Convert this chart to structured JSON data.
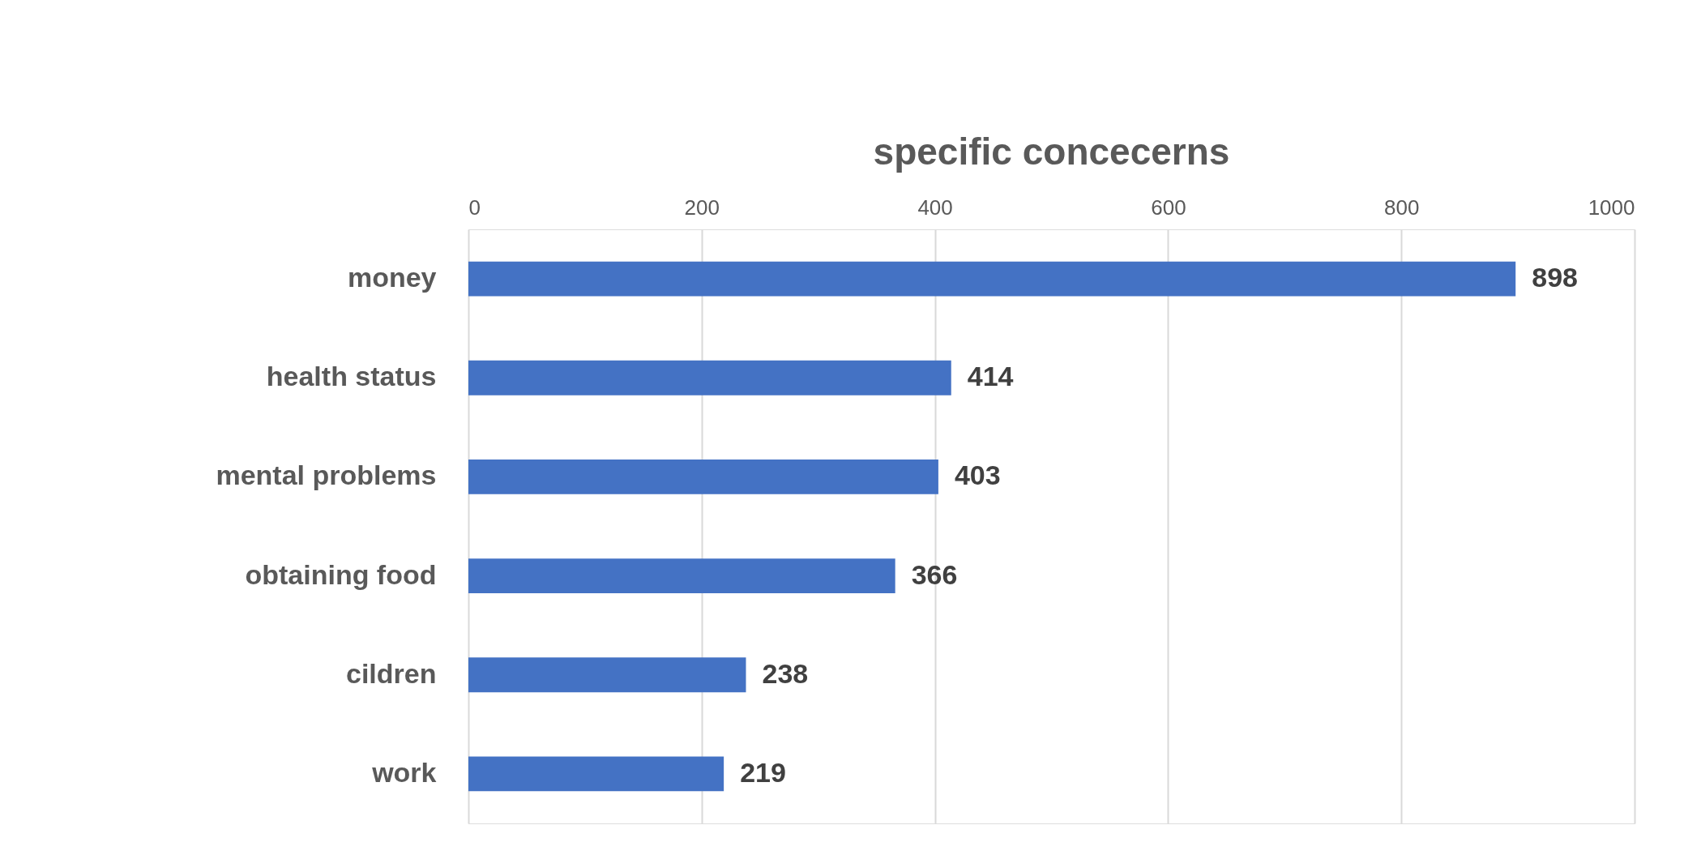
{
  "chart_data": {
    "type": "bar",
    "orientation": "horizontal",
    "title": "specific concecerns",
    "categories": [
      "money",
      "health status",
      "mental problems",
      "obtaining food",
      "cildren",
      "work"
    ],
    "values": [
      898,
      414,
      403,
      366,
      238,
      219
    ],
    "color": "#4472c4",
    "xlim": [
      0,
      1000
    ],
    "xticks": [
      0,
      200,
      400,
      600,
      800,
      1000
    ],
    "grid": "x",
    "data_labels": true
  }
}
